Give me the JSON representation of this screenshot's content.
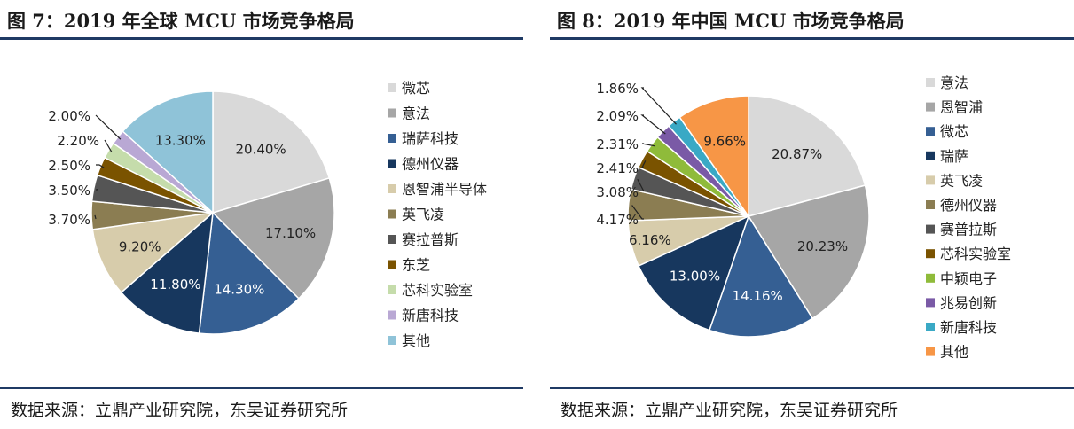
{
  "figures": [
    {
      "title": "图 7：2019 年全球 MCU 市场竞争格局",
      "source": "数据来源：立鼎产业研究院，东吴证券研究所"
    },
    {
      "title": "图 8：2019 年中国 MCU 市场竞争格局",
      "source": "数据来源：立鼎产业研究院，东吴证券研究所"
    }
  ],
  "chart_data": [
    {
      "type": "pie",
      "title": "",
      "legend_position": "right",
      "slices": [
        {
          "label": "微芯",
          "value": 20.4,
          "display": "20.40%",
          "color": "#d9d9d9"
        },
        {
          "label": "意法",
          "value": 17.1,
          "display": "17.10%",
          "color": "#a6a6a6"
        },
        {
          "label": "瑞萨科技",
          "value": 14.3,
          "display": "14.30%",
          "color": "#355f93"
        },
        {
          "label": "德州仪器",
          "value": 11.8,
          "display": "11.80%",
          "color": "#17375e"
        },
        {
          "label": "恩智浦半导体",
          "value": 9.2,
          "display": "9.20%",
          "color": "#d7ccab"
        },
        {
          "label": "英飞凌",
          "value": 3.7,
          "display": "3.70%",
          "color": "#8b7d52"
        },
        {
          "label": "赛拉普斯",
          "value": 3.5,
          "display": "3.50%",
          "color": "#555555"
        },
        {
          "label": "东芝",
          "value": 2.5,
          "display": "2.50%",
          "color": "#7a5300"
        },
        {
          "label": "芯科实验室",
          "value": 2.2,
          "display": "2.20%",
          "color": "#c5dcab"
        },
        {
          "label": "新唐科技",
          "value": 2.0,
          "display": "2.00%",
          "color": "#b9a8d4"
        },
        {
          "label": "其他",
          "value": 13.3,
          "display": "13.30%",
          "color": "#8fc3d8"
        }
      ]
    },
    {
      "type": "pie",
      "title": "",
      "legend_position": "right",
      "slices": [
        {
          "label": "意法",
          "value": 20.87,
          "display": "20.87%",
          "color": "#d9d9d9"
        },
        {
          "label": "恩智浦",
          "value": 20.23,
          "display": "20.23%",
          "color": "#a6a6a6"
        },
        {
          "label": "微芯",
          "value": 14.16,
          "display": "14.16%",
          "color": "#355f93"
        },
        {
          "label": "瑞萨",
          "value": 13.0,
          "display": "13.00%",
          "color": "#17375e"
        },
        {
          "label": "英飞凌",
          "value": 6.16,
          "display": "6.16%",
          "color": "#d7ccab"
        },
        {
          "label": "德州仪器",
          "value": 4.17,
          "display": "4.17%",
          "color": "#8b7d52"
        },
        {
          "label": "赛普拉斯",
          "value": 3.08,
          "display": "3.08%",
          "color": "#555555"
        },
        {
          "label": "芯科实验室",
          "value": 2.41,
          "display": "2.41%",
          "color": "#7a5300"
        },
        {
          "label": "中颖电子",
          "value": 2.31,
          "display": "2.31%",
          "color": "#8fbb3a"
        },
        {
          "label": "兆易创新",
          "value": 2.09,
          "display": "2.09%",
          "color": "#7a5aa6"
        },
        {
          "label": "新唐科技",
          "value": 1.86,
          "display": "1.86%",
          "color": "#3aa9c5"
        },
        {
          "label": "其他",
          "value": 9.66,
          "display": "9.66%",
          "color": "#f79646"
        }
      ]
    }
  ]
}
